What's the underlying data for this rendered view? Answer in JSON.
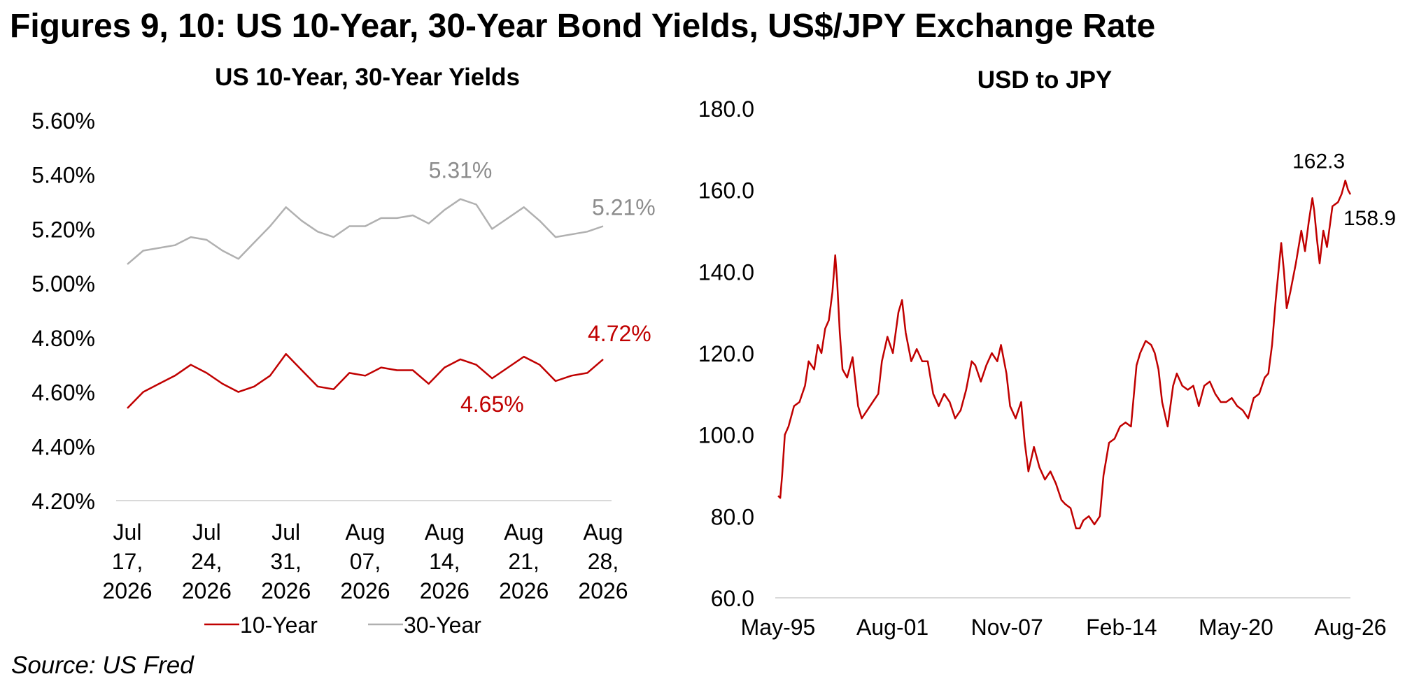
{
  "figure_title": "Figures 9, 10: US 10-Year, 30-Year Bond Yields, US$/JPY Exchange Rate",
  "source": "Source: US Fred",
  "chart_data": [
    {
      "type": "line",
      "title": "US 10-Year, 30-Year Yields",
      "x_tick_labels": [
        [
          "Jul",
          "17,",
          "2026"
        ],
        [
          "Jul",
          "24,",
          "2026"
        ],
        [
          "Jul",
          "31,",
          "2026"
        ],
        [
          "Aug",
          "07,",
          "2026"
        ],
        [
          "Aug",
          "14,",
          "2026"
        ],
        [
          "Aug",
          "21,",
          "2026"
        ],
        [
          "Aug",
          "28,",
          "2026"
        ]
      ],
      "y_tick_labels": [
        "5.60%",
        "5.40%",
        "5.20%",
        "5.00%",
        "4.80%",
        "4.60%",
        "4.40%",
        "4.20%"
      ],
      "ylim": [
        4.2,
        5.6
      ],
      "grid": false,
      "legend": "bottom",
      "series": [
        {
          "name": "10-Year",
          "color": "#c00000",
          "values": [
            4.54,
            4.6,
            4.63,
            4.66,
            4.7,
            4.67,
            4.63,
            4.6,
            4.62,
            4.66,
            4.74,
            4.68,
            4.62,
            4.61,
            4.67,
            4.66,
            4.69,
            4.68,
            4.68,
            4.63,
            4.69,
            4.72,
            4.7,
            4.65,
            4.69,
            4.73,
            4.7,
            4.64,
            4.66,
            4.67,
            4.72
          ]
        },
        {
          "name": "30-Year",
          "color": "#b0b0b0",
          "values": [
            5.07,
            5.12,
            5.13,
            5.14,
            5.17,
            5.16,
            5.12,
            5.09,
            5.15,
            5.21,
            5.28,
            5.23,
            5.19,
            5.17,
            5.21,
            5.21,
            5.24,
            5.24,
            5.25,
            5.22,
            5.27,
            5.31,
            5.29,
            5.2,
            5.24,
            5.28,
            5.23,
            5.17,
            5.18,
            5.19,
            5.21
          ]
        }
      ],
      "annotations": [
        {
          "text": "5.31%",
          "series": "30-Year",
          "index": 21,
          "color": "#8c8c8c"
        },
        {
          "text": "5.21%",
          "series": "30-Year",
          "index": 30,
          "color": "#8c8c8c"
        },
        {
          "text": "4.72%",
          "series": "10-Year",
          "index": 30,
          "color": "#c00000"
        },
        {
          "text": "4.65%",
          "series": "10-Year",
          "index": 23,
          "color": "#c00000"
        }
      ]
    },
    {
      "type": "line",
      "title": "USD to JPY",
      "x_tick_labels": [
        "May-95",
        "Aug-01",
        "Nov-07",
        "Feb-14",
        "May-20",
        "Aug-26"
      ],
      "y_tick_labels": [
        "180.0",
        "160.0",
        "140.0",
        "120.0",
        "100.0",
        "80.0",
        "60.0"
      ],
      "ylim": [
        60,
        180
      ],
      "xlim": [
        1995.33,
        2026.58
      ],
      "grid": false,
      "series": [
        {
          "color": "#c00000",
          "x": [
            1995.33,
            1995.45,
            1995.55,
            1995.7,
            1995.9,
            1996.2,
            1996.5,
            1996.8,
            1997.0,
            1997.3,
            1997.5,
            1997.7,
            1997.9,
            1998.1,
            1998.3,
            1998.45,
            1998.55,
            1998.7,
            1998.85,
            1999.1,
            1999.4,
            1999.7,
            1999.9,
            2000.2,
            2000.5,
            2000.8,
            2001.0,
            2001.3,
            2001.6,
            2001.9,
            2002.1,
            2002.3,
            2002.6,
            2002.9,
            2003.2,
            2003.5,
            2003.8,
            2004.1,
            2004.4,
            2004.7,
            2005.0,
            2005.3,
            2005.6,
            2005.9,
            2006.1,
            2006.4,
            2006.7,
            2007.0,
            2007.3,
            2007.5,
            2007.8,
            2008.0,
            2008.3,
            2008.6,
            2008.8,
            2009.0,
            2009.3,
            2009.6,
            2009.9,
            2010.2,
            2010.5,
            2010.8,
            2011.0,
            2011.3,
            2011.6,
            2011.8,
            2012.0,
            2012.3,
            2012.6,
            2012.9,
            2013.1,
            2013.4,
            2013.7,
            2014.0,
            2014.3,
            2014.6,
            2014.9,
            2015.1,
            2015.4,
            2015.7,
            2015.9,
            2016.1,
            2016.3,
            2016.6,
            2016.9,
            2017.1,
            2017.4,
            2017.7,
            2018.0,
            2018.3,
            2018.6,
            2018.9,
            2019.2,
            2019.5,
            2019.8,
            2020.1,
            2020.4,
            2020.7,
            2021.0,
            2021.3,
            2021.6,
            2021.9,
            2022.1,
            2022.3,
            2022.5,
            2022.8,
            2022.95,
            2023.1,
            2023.3,
            2023.6,
            2023.9,
            2024.1,
            2024.3,
            2024.5,
            2024.6,
            2024.75,
            2024.9,
            2025.1,
            2025.3,
            2025.6,
            2025.9,
            2026.1,
            2026.3,
            2026.45,
            2026.58
          ],
          "values": [
            85,
            84.5,
            90,
            100,
            102,
            107,
            108,
            112,
            118,
            116,
            122,
            120,
            126,
            128,
            135,
            144,
            138,
            125,
            116,
            114,
            119,
            107,
            104,
            106,
            108,
            110,
            118,
            124,
            120,
            130,
            133,
            125,
            118,
            121,
            118,
            118,
            110,
            107,
            110,
            108,
            104,
            106,
            111,
            118,
            117,
            113,
            117,
            120,
            118,
            122,
            115,
            107,
            104,
            108,
            98,
            91,
            97,
            92,
            89,
            91,
            88,
            84,
            83,
            82,
            77,
            77,
            79,
            80,
            78,
            80,
            90,
            98,
            99,
            102,
            103,
            102,
            117,
            120,
            123,
            122,
            120,
            116,
            108,
            102,
            112,
            115,
            112,
            111,
            112,
            107,
            112,
            113,
            110,
            108,
            108,
            109,
            107,
            106,
            104,
            109,
            110,
            114,
            115,
            122,
            133,
            147,
            140,
            131,
            135,
            142,
            150,
            145,
            152,
            158,
            155,
            148,
            142,
            150,
            146,
            156,
            157,
            159,
            162.3,
            160,
            158.9
          ]
        }
      ],
      "annotations": [
        {
          "text": "162.3",
          "index": 122
        },
        {
          "text": "158.9",
          "index": 124
        }
      ]
    }
  ]
}
